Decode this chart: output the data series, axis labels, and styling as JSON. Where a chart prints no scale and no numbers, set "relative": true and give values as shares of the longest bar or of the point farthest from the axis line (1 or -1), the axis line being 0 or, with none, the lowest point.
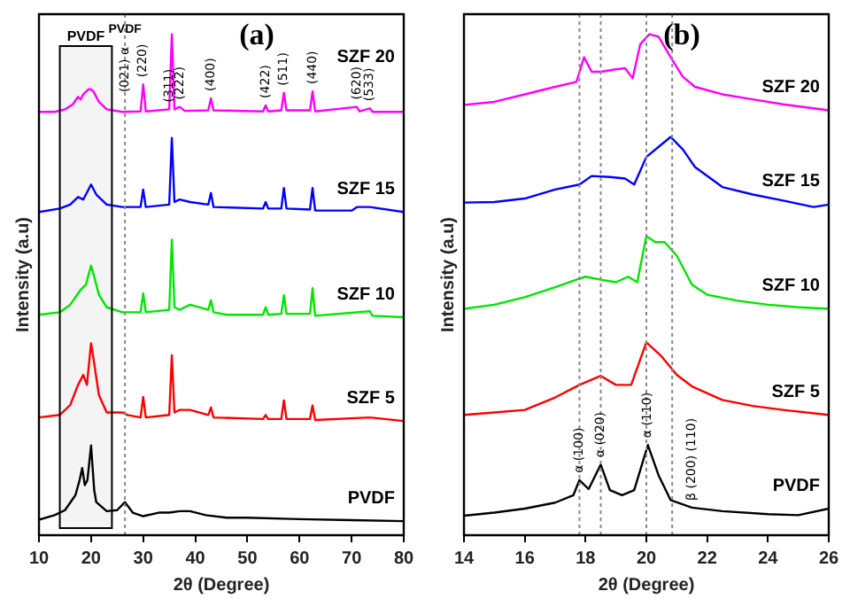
{
  "chart_data": [
    {
      "type": "line",
      "relative": true,
      "xlabel": "2θ (Degree)",
      "ylabel": "Intensity (a.u)",
      "xlim": [
        10,
        80
      ],
      "xticks": [
        10,
        20,
        30,
        40,
        50,
        60,
        70,
        80
      ],
      "tick_labels": "x",
      "grid": false,
      "legend": false,
      "marker": "none",
      "line_style": "solid",
      "series": [
        {
          "name": "SZF 20",
          "color": "#ff00ff",
          "x": [
            10,
            13,
            15,
            16.5,
            17.5,
            18,
            18.5,
            19.5,
            20,
            20.5,
            21.5,
            23,
            26,
            29.5,
            30,
            30.5,
            35,
            35.5,
            36,
            37,
            38,
            42.5,
            43,
            43.5,
            53,
            53.5,
            54,
            56.5,
            57,
            57.5,
            62,
            62.5,
            63,
            71,
            71.5,
            73.5,
            74,
            80
          ],
          "values": [
            0.845,
            0.845,
            0.85,
            0.86,
            0.875,
            0.87,
            0.88,
            0.89,
            0.89,
            0.885,
            0.865,
            0.85,
            0.845,
            0.846,
            0.9,
            0.846,
            0.85,
            1.0,
            0.85,
            0.855,
            0.847,
            0.848,
            0.872,
            0.848,
            0.846,
            0.858,
            0.846,
            0.848,
            0.883,
            0.848,
            0.848,
            0.886,
            0.846,
            0.855,
            0.846,
            0.852,
            0.845,
            0.845
          ]
        },
        {
          "name": "SZF 15",
          "color": "#0000ff",
          "x": [
            10,
            14,
            16,
            17.5,
            18.5,
            20,
            21,
            23,
            26,
            29.5,
            30,
            30.5,
            35,
            35.5,
            36,
            37,
            39,
            42.5,
            43,
            43.5,
            53,
            53.5,
            54,
            56.5,
            57,
            57.5,
            62,
            62.5,
            63,
            70,
            71,
            73.5,
            80
          ],
          "values": [
            0.645,
            0.652,
            0.66,
            0.675,
            0.67,
            0.7,
            0.68,
            0.66,
            0.655,
            0.655,
            0.69,
            0.655,
            0.66,
            0.793,
            0.665,
            0.67,
            0.665,
            0.66,
            0.683,
            0.655,
            0.652,
            0.665,
            0.652,
            0.652,
            0.693,
            0.652,
            0.65,
            0.693,
            0.648,
            0.648,
            0.655,
            0.655,
            0.645
          ]
        },
        {
          "name": "SZF 10",
          "color": "#00e600",
          "x": [
            10,
            14,
            16,
            18,
            19,
            20,
            20.5,
            21.5,
            23,
            26,
            29.5,
            30,
            30.5,
            35,
            35.5,
            36,
            37,
            39,
            42.5,
            43,
            43.5,
            46,
            53,
            53.5,
            54,
            56.5,
            57,
            57.5,
            62,
            62.5,
            63,
            73.5,
            74,
            80
          ],
          "values": [
            0.44,
            0.445,
            0.46,
            0.49,
            0.5,
            0.538,
            0.52,
            0.48,
            0.455,
            0.445,
            0.445,
            0.483,
            0.445,
            0.45,
            0.59,
            0.455,
            0.45,
            0.46,
            0.45,
            0.469,
            0.445,
            0.44,
            0.44,
            0.455,
            0.44,
            0.442,
            0.479,
            0.442,
            0.442,
            0.493,
            0.438,
            0.447,
            0.438,
            0.435
          ]
        },
        {
          "name": "SZF 5",
          "color": "#ff0000",
          "x": [
            10,
            14,
            16,
            17.5,
            18.5,
            19.2,
            20,
            20.5,
            21.5,
            23,
            26,
            27,
            29.5,
            30,
            30.5,
            35,
            35.5,
            36,
            37,
            39,
            42.5,
            43,
            43.5,
            53,
            53.5,
            54,
            56.5,
            57,
            57.5,
            62,
            62.5,
            63,
            73.5,
            80
          ],
          "values": [
            0.235,
            0.24,
            0.26,
            0.3,
            0.32,
            0.3,
            0.383,
            0.35,
            0.28,
            0.245,
            0.245,
            0.24,
            0.235,
            0.276,
            0.235,
            0.24,
            0.359,
            0.245,
            0.25,
            0.25,
            0.24,
            0.255,
            0.235,
            0.232,
            0.24,
            0.232,
            0.232,
            0.269,
            0.232,
            0.232,
            0.259,
            0.23,
            0.235,
            0.228
          ]
        },
        {
          "name": "PVDF",
          "color": "#000000",
          "x": [
            10,
            13,
            15,
            17,
            17.8,
            18.3,
            18.8,
            19.3,
            20,
            20.6,
            21,
            23,
            25,
            26.5,
            28,
            30,
            33,
            35,
            37,
            39,
            42,
            46,
            50,
            60,
            70,
            80
          ],
          "values": [
            0.031,
            0.04,
            0.05,
            0.08,
            0.11,
            0.134,
            0.1,
            0.11,
            0.179,
            0.09,
            0.066,
            0.048,
            0.05,
            0.066,
            0.045,
            0.038,
            0.045,
            0.045,
            0.048,
            0.048,
            0.04,
            0.035,
            0.035,
            0.032,
            0.03,
            0.028
          ]
        }
      ],
      "ref_lines": [
        {
          "axis": "x",
          "value": 26.5,
          "color": "#888888",
          "line_style": "dotted"
        }
      ],
      "bands": [
        {
          "axis": "x",
          "from": 14,
          "to": 24,
          "label": "PVDF",
          "color": "#f4f4f4"
        }
      ],
      "annotations": [
        "(a)",
        {
          "text": "PVDF",
          "x": 26.5,
          "y": 1.01
        },
        {
          "text": "(021) α",
          "x": 26.5,
          "y": 0.87
        },
        {
          "text": "(220)",
          "x": 30,
          "y": 0.9
        },
        {
          "text": "(311)",
          "x": 35,
          "y": 0.85
        },
        {
          "text": "(222)",
          "x": 37,
          "y": 0.855
        },
        {
          "text": "(400)",
          "x": 43,
          "y": 0.872
        },
        {
          "text": "(422)",
          "x": 53.5,
          "y": 0.858
        },
        {
          "text": "(511)",
          "x": 57,
          "y": 0.883
        },
        {
          "text": "(440)",
          "x": 62.5,
          "y": 0.886
        },
        {
          "text": "(620)",
          "x": 71,
          "y": 0.855
        },
        {
          "text": "(533)",
          "x": 73.5,
          "y": 0.852
        }
      ]
    },
    {
      "type": "line",
      "relative": true,
      "xlabel": "2θ (Degree)",
      "ylabel": "Intensity (a.u)",
      "xlim": [
        14,
        26
      ],
      "xticks": [
        14,
        16,
        18,
        20,
        22,
        24,
        26
      ],
      "tick_labels": "x",
      "grid": false,
      "legend": false,
      "marker": "none",
      "line_style": "solid",
      "series": [
        {
          "name": "SZF 20",
          "color": "#ff00ff",
          "x": [
            14,
            15,
            16,
            17,
            17.7,
            17.95,
            18.2,
            18.5,
            19,
            19.3,
            19.55,
            19.8,
            20.1,
            20.4,
            20.8,
            21.2,
            21.6,
            22.5,
            23.5,
            24.5,
            25.5,
            26
          ],
          "values": [
            0.859,
            0.865,
            0.88,
            0.895,
            0.905,
            0.954,
            0.925,
            0.925,
            0.93,
            0.932,
            0.912,
            0.98,
            1.0,
            0.995,
            0.954,
            0.915,
            0.895,
            0.88,
            0.87,
            0.86,
            0.852,
            0.848
          ]
        },
        {
          "name": "SZF 15",
          "color": "#0000ff",
          "x": [
            14,
            15,
            16,
            17,
            17.8,
            18.2,
            18.8,
            19.3,
            19.6,
            20,
            20.5,
            20.8,
            21.2,
            21.6,
            22.5,
            23.5,
            24.5,
            25.5,
            26
          ],
          "values": [
            0.664,
            0.665,
            0.672,
            0.69,
            0.7,
            0.717,
            0.715,
            0.712,
            0.7,
            0.755,
            0.78,
            0.795,
            0.77,
            0.735,
            0.695,
            0.68,
            0.668,
            0.655,
            0.66
          ]
        },
        {
          "name": "SZF 10",
          "color": "#00e600",
          "x": [
            14,
            15,
            16,
            17,
            17.7,
            18,
            18.5,
            19,
            19.4,
            19.7,
            20,
            20.3,
            20.6,
            21,
            21.5,
            22,
            23,
            24,
            25,
            26
          ],
          "values": [
            0.452,
            0.46,
            0.475,
            0.495,
            0.51,
            0.516,
            0.51,
            0.505,
            0.516,
            0.505,
            0.597,
            0.585,
            0.585,
            0.558,
            0.5,
            0.48,
            0.468,
            0.46,
            0.455,
            0.452
          ]
        },
        {
          "name": "SZF 5",
          "color": "#ff0000",
          "x": [
            14,
            15,
            16,
            17,
            17.8,
            18.5,
            19,
            19.5,
            20,
            20.5,
            21,
            21.5,
            22.5,
            23.5,
            24.5,
            26
          ],
          "values": [
            0.24,
            0.245,
            0.25,
            0.275,
            0.3,
            0.318,
            0.3,
            0.3,
            0.385,
            0.357,
            0.32,
            0.297,
            0.27,
            0.258,
            0.25,
            0.24
          ]
        },
        {
          "name": "PVDF",
          "color": "#000000",
          "x": [
            14,
            15,
            16,
            17,
            17.6,
            17.8,
            18.1,
            18.5,
            18.8,
            19.2,
            19.6,
            20.05,
            20.4,
            20.8,
            21.5,
            22.5,
            24,
            25,
            26
          ],
          "values": [
            0.039,
            0.045,
            0.053,
            0.065,
            0.08,
            0.11,
            0.092,
            0.141,
            0.09,
            0.08,
            0.09,
            0.18,
            0.12,
            0.07,
            0.055,
            0.048,
            0.042,
            0.04,
            0.053
          ]
        }
      ],
      "ref_lines": [
        {
          "axis": "x",
          "value": 17.8,
          "color": "#888888",
          "line_style": "dotted"
        },
        {
          "axis": "x",
          "value": 18.5,
          "color": "#888888",
          "line_style": "dotted"
        },
        {
          "axis": "x",
          "value": 20.0,
          "color": "#888888",
          "line_style": "dotted"
        },
        {
          "axis": "x",
          "value": 20.85,
          "color": "#888888",
          "line_style": "dotted"
        }
      ],
      "annotations": [
        "(b)",
        {
          "text": "α (100)",
          "x": 17.8,
          "y": 0.11
        },
        {
          "text": "α (020)",
          "x": 18.5,
          "y": 0.141
        },
        {
          "text": "α (110)",
          "x": 20.05,
          "y": 0.18
        },
        {
          "text": "β (200) (110)",
          "x": 21.5,
          "y": 0.055
        }
      ]
    }
  ]
}
